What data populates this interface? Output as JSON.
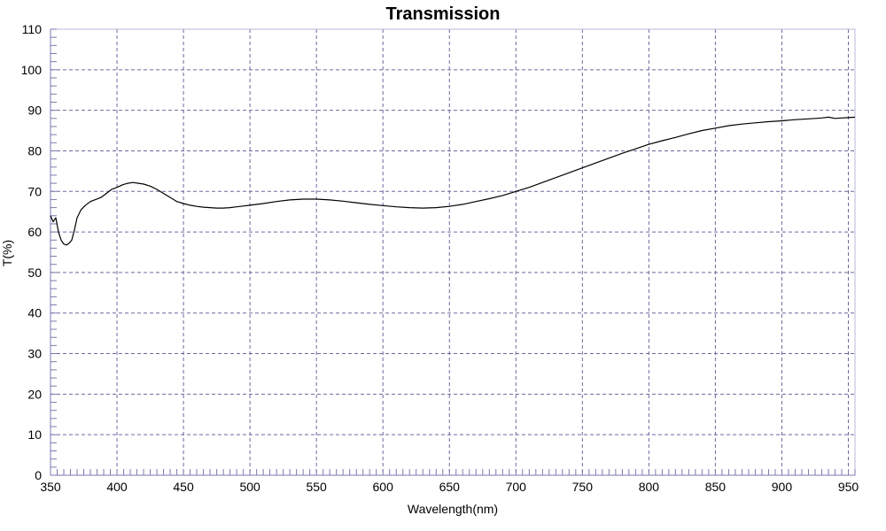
{
  "chart_data": {
    "type": "line",
    "title": "Transmission",
    "xlabel": "Wavelength(nm)",
    "ylabel": "T(%)",
    "xlim": [
      350,
      955
    ],
    "ylim": [
      0,
      110
    ],
    "xticks": [
      350,
      400,
      450,
      500,
      550,
      600,
      650,
      700,
      750,
      800,
      850,
      900,
      950
    ],
    "yticks": [
      0,
      10,
      20,
      30,
      40,
      50,
      60,
      70,
      80,
      90,
      100,
      110
    ],
    "x_minor_step": 5,
    "y_minor_step": 2,
    "grid": true,
    "legend": "none",
    "colors": {
      "line": "#000000",
      "grid": "#6a6aa0",
      "axis": "#7a7ab0",
      "frame": "#b8b8d8",
      "background": "#ffffff"
    },
    "series": [
      {
        "values_x": [
          350,
          352,
          354,
          356,
          358,
          360,
          362,
          364,
          366,
          368,
          370,
          373,
          376,
          380,
          384,
          388,
          392,
          396,
          400,
          404,
          408,
          412,
          416,
          420,
          425,
          430,
          435,
          440,
          445,
          450,
          455,
          460,
          465,
          470,
          475,
          480,
          485,
          490,
          495,
          500,
          510,
          520,
          530,
          540,
          550,
          560,
          570,
          580,
          590,
          600,
          610,
          620,
          630,
          640,
          650,
          660,
          670,
          680,
          690,
          700,
          710,
          720,
          730,
          740,
          750,
          760,
          770,
          780,
          790,
          800,
          810,
          820,
          830,
          840,
          850,
          860,
          870,
          880,
          890,
          900,
          910,
          920,
          930,
          935,
          940,
          945,
          950,
          955
        ],
        "values_y": [
          64.0,
          62.5,
          63.5,
          60.0,
          58.0,
          57.0,
          56.8,
          57.2,
          58.0,
          60.5,
          63.5,
          65.5,
          66.5,
          67.5,
          68.0,
          68.5,
          69.5,
          70.5,
          71.0,
          71.6,
          72.0,
          72.2,
          72.0,
          71.8,
          71.3,
          70.5,
          69.5,
          68.5,
          67.5,
          67.0,
          66.6,
          66.3,
          66.1,
          66.0,
          65.9,
          65.9,
          66.0,
          66.2,
          66.4,
          66.6,
          67.0,
          67.5,
          67.9,
          68.1,
          68.1,
          67.9,
          67.6,
          67.2,
          66.8,
          66.5,
          66.2,
          66.0,
          65.9,
          66.0,
          66.3,
          66.8,
          67.5,
          68.2,
          69.0,
          70.0,
          71.0,
          72.2,
          73.4,
          74.6,
          75.8,
          77.0,
          78.2,
          79.4,
          80.5,
          81.6,
          82.5,
          83.3,
          84.2,
          85.0,
          85.6,
          86.2,
          86.6,
          86.9,
          87.2,
          87.4,
          87.7,
          87.9,
          88.1,
          88.3,
          88.0,
          88.1,
          88.2,
          88.3
        ]
      }
    ]
  }
}
